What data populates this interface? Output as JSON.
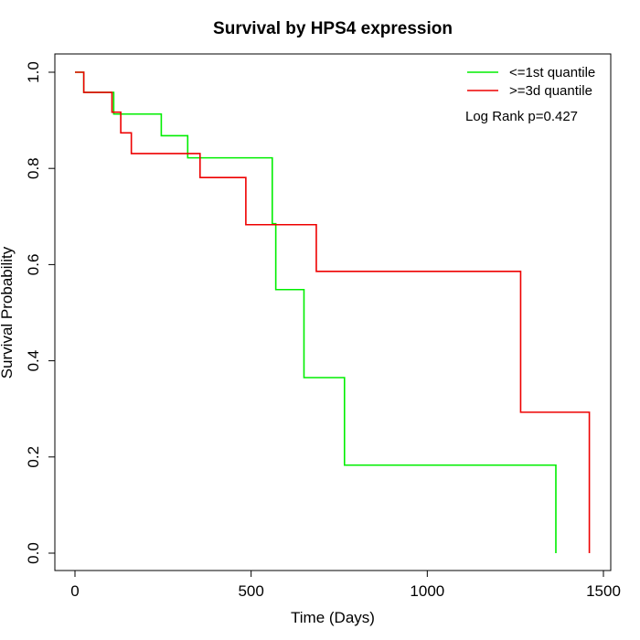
{
  "chart_data": {
    "type": "line",
    "subtype": "step",
    "title": "Survival by HPS4 expression",
    "xlabel": "Time (Days)",
    "ylabel": "Survival Probability",
    "xlim": [
      0,
      1500
    ],
    "ylim": [
      0,
      1.0
    ],
    "x_ticks": [
      0,
      500,
      1000,
      1500
    ],
    "x_tick_labels": [
      "0",
      "500",
      "1000",
      "1500"
    ],
    "y_ticks": [
      0,
      0.2,
      0.4,
      0.6,
      0.8,
      1.0
    ],
    "y_tick_labels": [
      "0.0",
      "0.2",
      "0.4",
      "0.6",
      "0.8",
      "1.0"
    ],
    "grid": false,
    "legend_position": "top-right",
    "annotation": "Log Rank p=0.427",
    "series": [
      {
        "name": "<=1st quantile",
        "color": "#00ee00",
        "x": [
          0,
          25,
          110,
          245,
          320,
          560,
          570,
          650,
          765,
          1365,
          1365
        ],
        "y": [
          1.0,
          0.958,
          0.913,
          0.868,
          0.822,
          0.685,
          0.548,
          0.365,
          0.183,
          0.183,
          0.0
        ]
      },
      {
        "name": ">=3d quantile",
        "color": "#ee0000",
        "x": [
          0,
          25,
          105,
          130,
          160,
          355,
          485,
          685,
          1265,
          1460,
          1460
        ],
        "y": [
          1.0,
          0.958,
          0.917,
          0.874,
          0.831,
          0.781,
          0.683,
          0.586,
          0.293,
          0.293,
          0.0
        ]
      }
    ]
  }
}
